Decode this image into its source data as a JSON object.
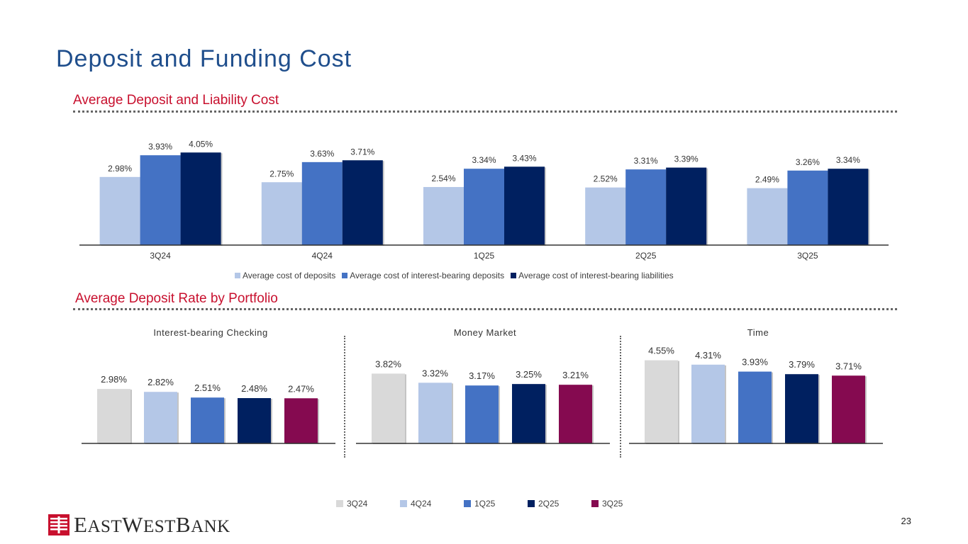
{
  "page_title": "Deposit and Funding Cost",
  "section1_title": "Average Deposit and Liability Cost",
  "section2_title": "Average Deposit Rate by Portfolio",
  "page_number": "23",
  "logo": {
    "text": "EastWestBank",
    "icon": "east-west-bank-logo-icon"
  },
  "colors": {
    "c3q24": "#D9D9D9",
    "c4q24": "#B4C7E7",
    "c1q25": "#4472C4",
    "c2q25": "#002060",
    "c3q25": "#850A50",
    "title": "#1F4E8C",
    "section": "#C8102E"
  },
  "chart_data": [
    {
      "type": "bar",
      "categories": [
        "3Q24",
        "4Q24",
        "1Q25",
        "2Q25",
        "3Q25"
      ],
      "series": [
        {
          "name": "Average cost of deposits",
          "values": [
            2.98,
            2.75,
            2.54,
            2.52,
            2.49
          ],
          "labels": [
            "2.98%",
            "2.75%",
            "2.54%",
            "2.52%",
            "2.49%"
          ],
          "color": "#B4C7E7"
        },
        {
          "name": "Average cost of interest-bearing deposits",
          "values": [
            3.93,
            3.63,
            3.34,
            3.31,
            3.26
          ],
          "labels": [
            "3.93%",
            "3.63%",
            "3.34%",
            "3.31%",
            "3.26%"
          ],
          "color": "#4472C4"
        },
        {
          "name": "Average cost of interest-bearing liabilities",
          "values": [
            4.05,
            3.71,
            3.43,
            3.39,
            3.34
          ],
          "labels": [
            "4.05%",
            "3.71%",
            "3.43%",
            "3.39%",
            "3.34%"
          ],
          "color": "#002060"
        }
      ],
      "ylim": [
        0,
        5.5
      ],
      "legend": "bottom"
    },
    {
      "type": "bar",
      "title": "Interest-bearing Checking",
      "categories": [
        "3Q24",
        "4Q24",
        "1Q25",
        "2Q25",
        "3Q25"
      ],
      "values": [
        2.98,
        2.82,
        2.51,
        2.48,
        2.47
      ],
      "labels": [
        "2.98%",
        "2.82%",
        "2.51%",
        "2.48%",
        "2.47%"
      ],
      "ylim": [
        0,
        4.6
      ]
    },
    {
      "type": "bar",
      "title": "Money Market",
      "categories": [
        "3Q24",
        "4Q24",
        "1Q25",
        "2Q25",
        "3Q25"
      ],
      "values": [
        3.82,
        3.32,
        3.17,
        3.25,
        3.21
      ],
      "labels": [
        "3.82%",
        "3.32%",
        "3.17%",
        "3.25%",
        "3.21%"
      ],
      "ylim": [
        0,
        4.6
      ]
    },
    {
      "type": "bar",
      "title": "Time",
      "categories": [
        "3Q24",
        "4Q24",
        "1Q25",
        "2Q25",
        "3Q25"
      ],
      "values": [
        4.55,
        4.31,
        3.93,
        3.79,
        3.71
      ],
      "labels": [
        "4.55%",
        "4.31%",
        "3.93%",
        "3.79%",
        "3.71%"
      ],
      "ylim": [
        0,
        4.6
      ]
    }
  ],
  "portfolio_legend": [
    "3Q24",
    "4Q24",
    "1Q25",
    "2Q25",
    "3Q25"
  ]
}
